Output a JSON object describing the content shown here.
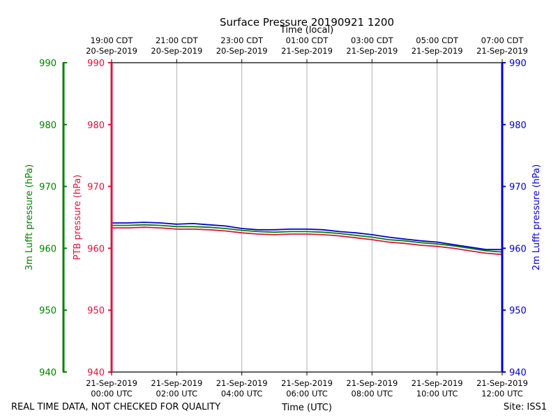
{
  "chart_data": {
    "type": "line",
    "title": "Surface Pressure 20190921 1200",
    "xlabel_top": "Time (local)",
    "xlabel_bottom": "Time (UTC)",
    "footer_left": "REAL TIME DATA, NOT CHECKED FOR QUALITY",
    "footer_right": "Site: ISS1",
    "ylim": [
      940,
      990
    ],
    "yticks": [
      940,
      950,
      960,
      970,
      980,
      990
    ],
    "grid": "vertical",
    "axes": {
      "left_outer": {
        "label": "3m Lufft pressure (hPa)",
        "color": "#008000"
      },
      "left_inner": {
        "label": "PTB pressure (hPa)",
        "color": "#dc143c"
      },
      "right": {
        "label": "2m Lufft pressure (hPa)",
        "color": "#0000cd"
      }
    },
    "x_ticks_bottom": [
      {
        "date": "21-Sep-2019",
        "time": "00:00 UTC"
      },
      {
        "date": "21-Sep-2019",
        "time": "02:00 UTC"
      },
      {
        "date": "21-Sep-2019",
        "time": "04:00 UTC"
      },
      {
        "date": "21-Sep-2019",
        "time": "06:00 UTC"
      },
      {
        "date": "21-Sep-2019",
        "time": "08:00 UTC"
      },
      {
        "date": "21-Sep-2019",
        "time": "10:00 UTC"
      },
      {
        "date": "21-Sep-2019",
        "time": "12:00 UTC"
      }
    ],
    "x_ticks_top": [
      {
        "time": "19:00 CDT",
        "date": "20-Sep-2019"
      },
      {
        "time": "21:00 CDT",
        "date": "20-Sep-2019"
      },
      {
        "time": "23:00 CDT",
        "date": "20-Sep-2019"
      },
      {
        "time": "01:00 CDT",
        "date": "21-Sep-2019"
      },
      {
        "time": "03:00 CDT",
        "date": "21-Sep-2019"
      },
      {
        "time": "05:00 CDT",
        "date": "21-Sep-2019"
      },
      {
        "time": "07:00 CDT",
        "date": "21-Sep-2019"
      }
    ],
    "x_hours_utc": [
      0,
      0.5,
      1,
      1.5,
      2,
      2.5,
      3,
      3.5,
      4,
      4.5,
      5,
      5.5,
      6,
      6.5,
      7,
      7.5,
      8,
      8.5,
      9,
      9.5,
      10,
      10.5,
      11,
      11.5,
      12
    ],
    "series": [
      {
        "axis": "left_inner",
        "color": "#dc143c",
        "values": [
          963.3,
          963.3,
          963.4,
          963.3,
          963.1,
          963.1,
          963.0,
          962.8,
          962.5,
          962.3,
          962.2,
          962.3,
          962.3,
          962.2,
          962.0,
          961.7,
          961.4,
          961.0,
          960.8,
          960.5,
          960.3,
          960.0,
          959.6,
          959.2,
          959.0
        ]
      },
      {
        "axis": "left_outer",
        "color": "#008000",
        "values": [
          963.7,
          963.7,
          963.8,
          963.7,
          963.5,
          963.5,
          963.4,
          963.2,
          962.9,
          962.7,
          962.6,
          962.7,
          962.7,
          962.6,
          962.4,
          962.1,
          961.8,
          961.4,
          961.2,
          960.9,
          960.7,
          960.4,
          960.0,
          959.6,
          959.4
        ]
      },
      {
        "axis": "right",
        "color": "#0000cd",
        "values": [
          964.1,
          964.1,
          964.2,
          964.1,
          963.9,
          964.0,
          963.8,
          963.6,
          963.2,
          963.0,
          963.0,
          963.1,
          963.1,
          963.0,
          962.7,
          962.5,
          962.2,
          961.8,
          961.5,
          961.2,
          961.0,
          960.6,
          960.2,
          959.8,
          959.8
        ]
      }
    ]
  }
}
